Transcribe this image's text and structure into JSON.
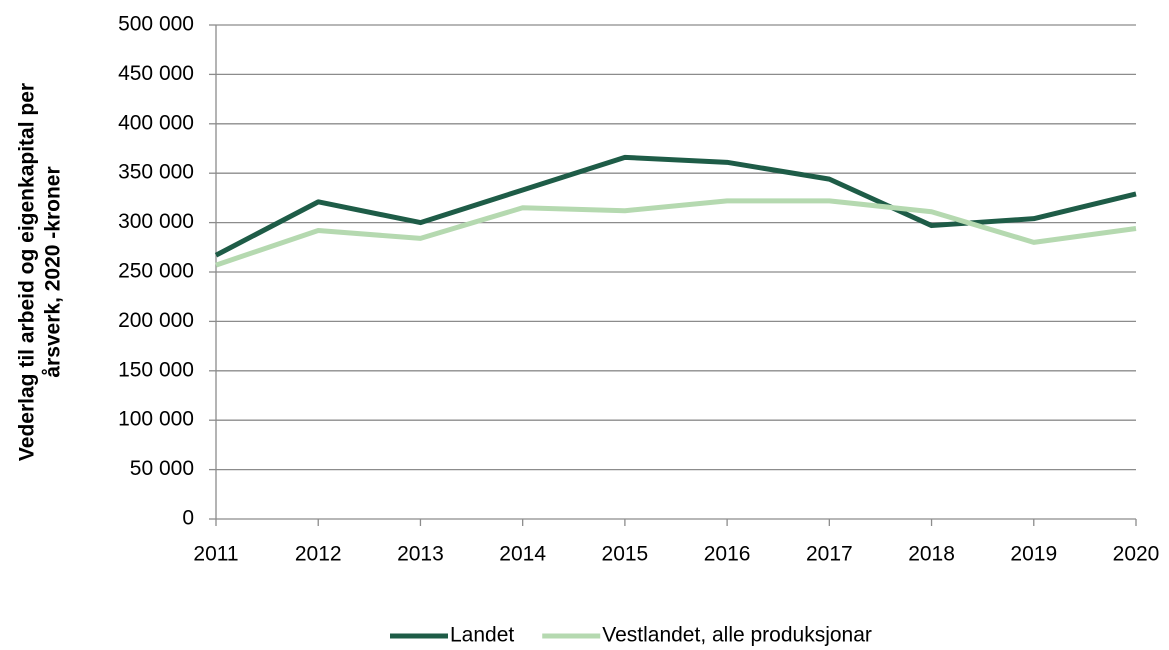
{
  "chart_data": {
    "type": "line",
    "y_label": [
      "Vederlag til arbeid og eigenkapital per",
      "årsverk, 2020 -kroner"
    ],
    "categories": [
      "2011",
      "2012",
      "2013",
      "2014",
      "2015",
      "2016",
      "2017",
      "2018",
      "2019",
      "2020"
    ],
    "series": [
      {
        "name": "Landet",
        "color": "#1e5c47",
        "values": [
          267000,
          321000,
          300000,
          333000,
          366000,
          361000,
          344000,
          297000,
          304000,
          329000
        ]
      },
      {
        "name": "Vestlandet, alle produksjonar",
        "color": "#b5d9b0",
        "values": [
          257000,
          292000,
          284000,
          315000,
          312000,
          322000,
          322000,
          311000,
          280000,
          294000
        ]
      }
    ],
    "ylim": [
      0,
      500000
    ],
    "yticks": [
      0,
      {
        "value": 50000,
        "label": "50 000"
      },
      {
        "value": 100000,
        "label": "100 000"
      },
      {
        "value": 150000,
        "label": "150 000"
      },
      {
        "value": 200000,
        "label": "200 000"
      },
      {
        "value": 250000,
        "label": "250 000"
      },
      {
        "value": 300000,
        "label": "300 000"
      },
      {
        "value": 350000,
        "label": "350 000"
      },
      {
        "value": 400000,
        "label": "400 000"
      },
      {
        "value": 450000,
        "label": "450 000"
      },
      {
        "value": 500000,
        "label": "500 000"
      }
    ],
    "grid": true,
    "legend": "bottom"
  }
}
